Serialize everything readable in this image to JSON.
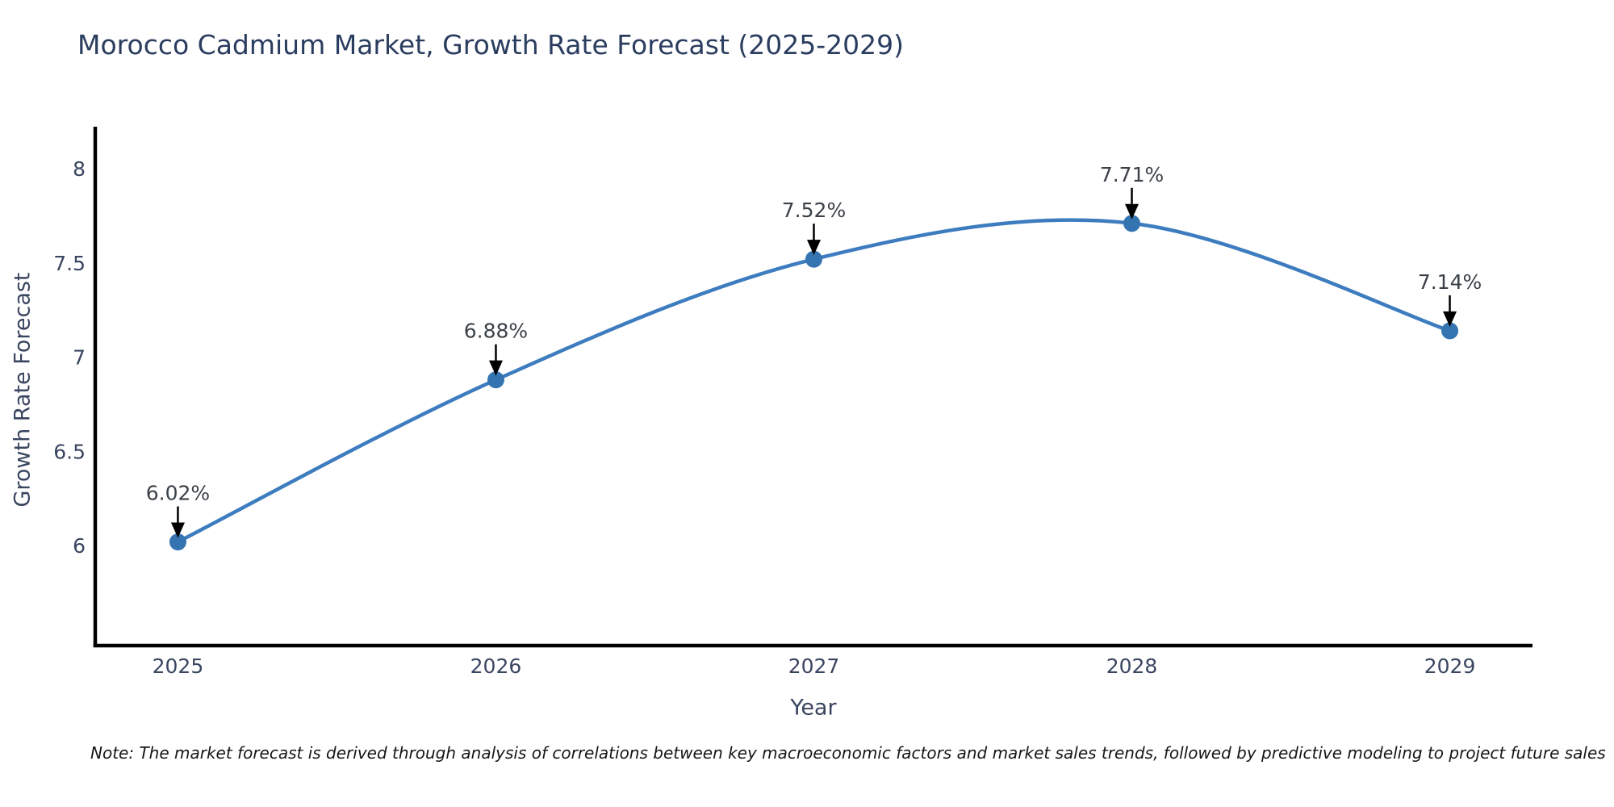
{
  "title": "Morocco Cadmium Market, Growth Rate Forecast (2025-2029)",
  "note": "Note: The market forecast is derived through analysis of correlations between key macroeconomic factors and market sales trends, followed by predictive modeling to project future sales",
  "colors": {
    "title_text": "#2b3d5f",
    "tick_text": "#3a4560",
    "axis_spine": "#000000",
    "line": "#3d7dbf",
    "marker": "#3474b0",
    "annotation_arrow": "#000000",
    "note_text": "#161616",
    "background": "#ffffff"
  },
  "chart_data": {
    "type": "line",
    "title": "Morocco Cadmium Market, Growth Rate Forecast (2025-2029)",
    "xlabel": "Year",
    "ylabel": "Growth Rate Forecast",
    "categories": [
      2025,
      2026,
      2027,
      2028,
      2029
    ],
    "series": [
      {
        "name": "Growth Rate Forecast",
        "values": [
          6.02,
          6.88,
          7.52,
          7.71,
          7.14
        ],
        "point_labels": [
          "6.02%",
          "6.88%",
          "7.52%",
          "7.71%",
          "7.14%"
        ]
      }
    ],
    "yticks": [
      6,
      6.5,
      7,
      7.5,
      8
    ],
    "xticks": [
      2025,
      2026,
      2027,
      2028,
      2029
    ],
    "xlim": [
      2024.74,
      2029.26
    ],
    "ylim": [
      5.47,
      8.21
    ],
    "grid": false,
    "legend_position": "none",
    "curve": "smooth",
    "annotations_have_arrows": true
  }
}
